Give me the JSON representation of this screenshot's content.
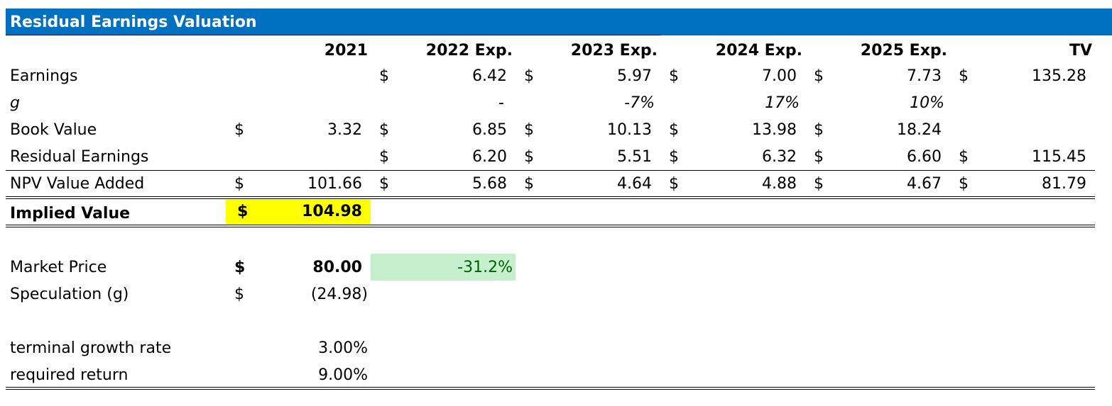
{
  "title": "Residual Earnings Valuation",
  "columns": [
    "2021",
    "2022 Exp.",
    "2023 Exp.",
    "2024 Exp.",
    "2025 Exp.",
    "TV"
  ],
  "currency_symbol": "$",
  "rows": {
    "earnings": {
      "label": "Earnings",
      "values": [
        "",
        "6.42",
        "5.97",
        "7.00",
        "7.73",
        "135.28"
      ]
    },
    "g": {
      "label": "g",
      "values": [
        "",
        "-",
        "-7%",
        "17%",
        "10%",
        ""
      ]
    },
    "book_value": {
      "label": "Book Value",
      "values": [
        "3.32",
        "6.85",
        "10.13",
        "13.98",
        "18.24",
        ""
      ]
    },
    "residual_earnings": {
      "label": "Residual Earnings",
      "values": [
        "",
        "6.20",
        "5.51",
        "6.32",
        "6.60",
        "115.45"
      ]
    },
    "npv_value_added": {
      "label": "NPV Value Added",
      "values": [
        "101.66",
        "5.68",
        "4.64",
        "4.88",
        "4.67",
        "81.79"
      ]
    }
  },
  "implied_value": {
    "label": "Implied Value",
    "value": "104.98"
  },
  "market_price": {
    "label": "Market Price",
    "value": "80.00",
    "difference": "-31.2%"
  },
  "speculation": {
    "label": "Speculation (g)",
    "value": "(24.98)"
  },
  "terminal_growth_rate": {
    "label": "terminal growth rate",
    "value": "3.00%"
  },
  "required_return": {
    "label": "required return",
    "value": "9.00%"
  },
  "colors": {
    "title_bar": "#0070c0",
    "implied_highlight": "#ffff00",
    "difference_fill": "#c6efce",
    "difference_text": "#006100"
  }
}
